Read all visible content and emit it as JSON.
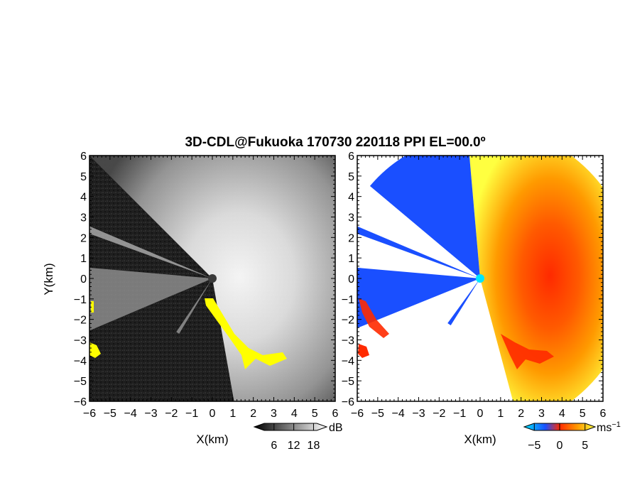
{
  "title": "3D-CDL@Fukuoka 170730 220118 PPI EL=00.0º",
  "colors": {
    "reflectivity_bg": "#1c1c1c",
    "reflectivity_sector": "#d8d8d8",
    "clutter_mask": "#ffff00",
    "radar_site_left": "#3a3a3a",
    "radar_site_right": "#00e5ff",
    "velocity_negative": "#1a4fff",
    "velocity_zero": "#ff2a00",
    "velocity_positive_mid": "#ff8a00",
    "velocity_positive_high": "#ffff40"
  },
  "chart_data": [
    {
      "type": "heatmap",
      "name": "reflectivity",
      "xlabel": "X(km)",
      "ylabel": "Y(km)",
      "xlim": [
        -6,
        6
      ],
      "ylim": [
        -6,
        6
      ],
      "xticks": [
        "−6",
        "−5",
        "−4",
        "−3",
        "−2",
        "−1",
        "0",
        "1",
        "2",
        "3",
        "4",
        "5",
        "6"
      ],
      "yticks": [
        "6",
        "5",
        "4",
        "3",
        "2",
        "1",
        "0",
        "−1",
        "−2",
        "−3",
        "−4",
        "−5",
        "−6"
      ],
      "colorbar": {
        "unit": "dB",
        "ticks": [
          "6",
          "12",
          "18"
        ],
        "tick_values": [
          6,
          12,
          18
        ],
        "range": [
          0,
          22
        ]
      }
    },
    {
      "type": "heatmap",
      "name": "doppler-velocity",
      "xlabel": "X(km)",
      "xlim": [
        -6,
        6
      ],
      "ylim": [
        -6,
        6
      ],
      "xticks": [
        "−6",
        "−5",
        "−4",
        "−3",
        "−2",
        "−1",
        "0",
        "1",
        "2",
        "3",
        "4",
        "5",
        "6"
      ],
      "yticks": [
        "6",
        "5",
        "4",
        "3",
        "2",
        "1",
        "0",
        "−1",
        "−2",
        "−3",
        "−4",
        "−5",
        "−6"
      ],
      "colorbar": {
        "unit": "ms",
        "unit_exponent": "−1",
        "ticks": [
          "−5",
          "0",
          "5"
        ],
        "tick_values": [
          -5,
          0,
          5
        ],
        "range": [
          -7,
          7
        ]
      }
    }
  ]
}
